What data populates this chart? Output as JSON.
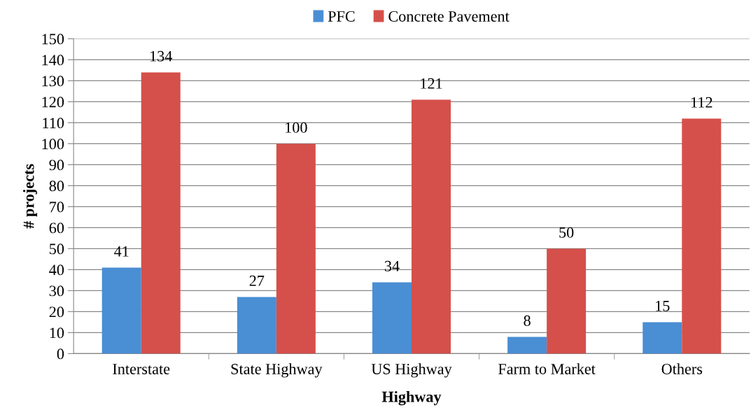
{
  "chart_data": {
    "type": "bar",
    "xlabel": "Highway",
    "ylabel": "# projects",
    "categories": [
      "Interstate",
      "State Highway",
      "US Highway",
      "Farm to Market",
      "Others"
    ],
    "series": [
      {
        "name": "PFC",
        "color": "#4a8ed4",
        "values": [
          41,
          27,
          34,
          8,
          15
        ]
      },
      {
        "name": "Concrete Pavement",
        "color": "#d5504a",
        "values": [
          134,
          100,
          121,
          50,
          112
        ]
      }
    ],
    "ylim": [
      0,
      150
    ],
    "yticks": [
      0,
      10,
      20,
      30,
      40,
      50,
      60,
      70,
      80,
      90,
      100,
      110,
      120,
      130,
      140,
      150
    ],
    "grid": "y",
    "legend": "top",
    "data_labels": true
  }
}
